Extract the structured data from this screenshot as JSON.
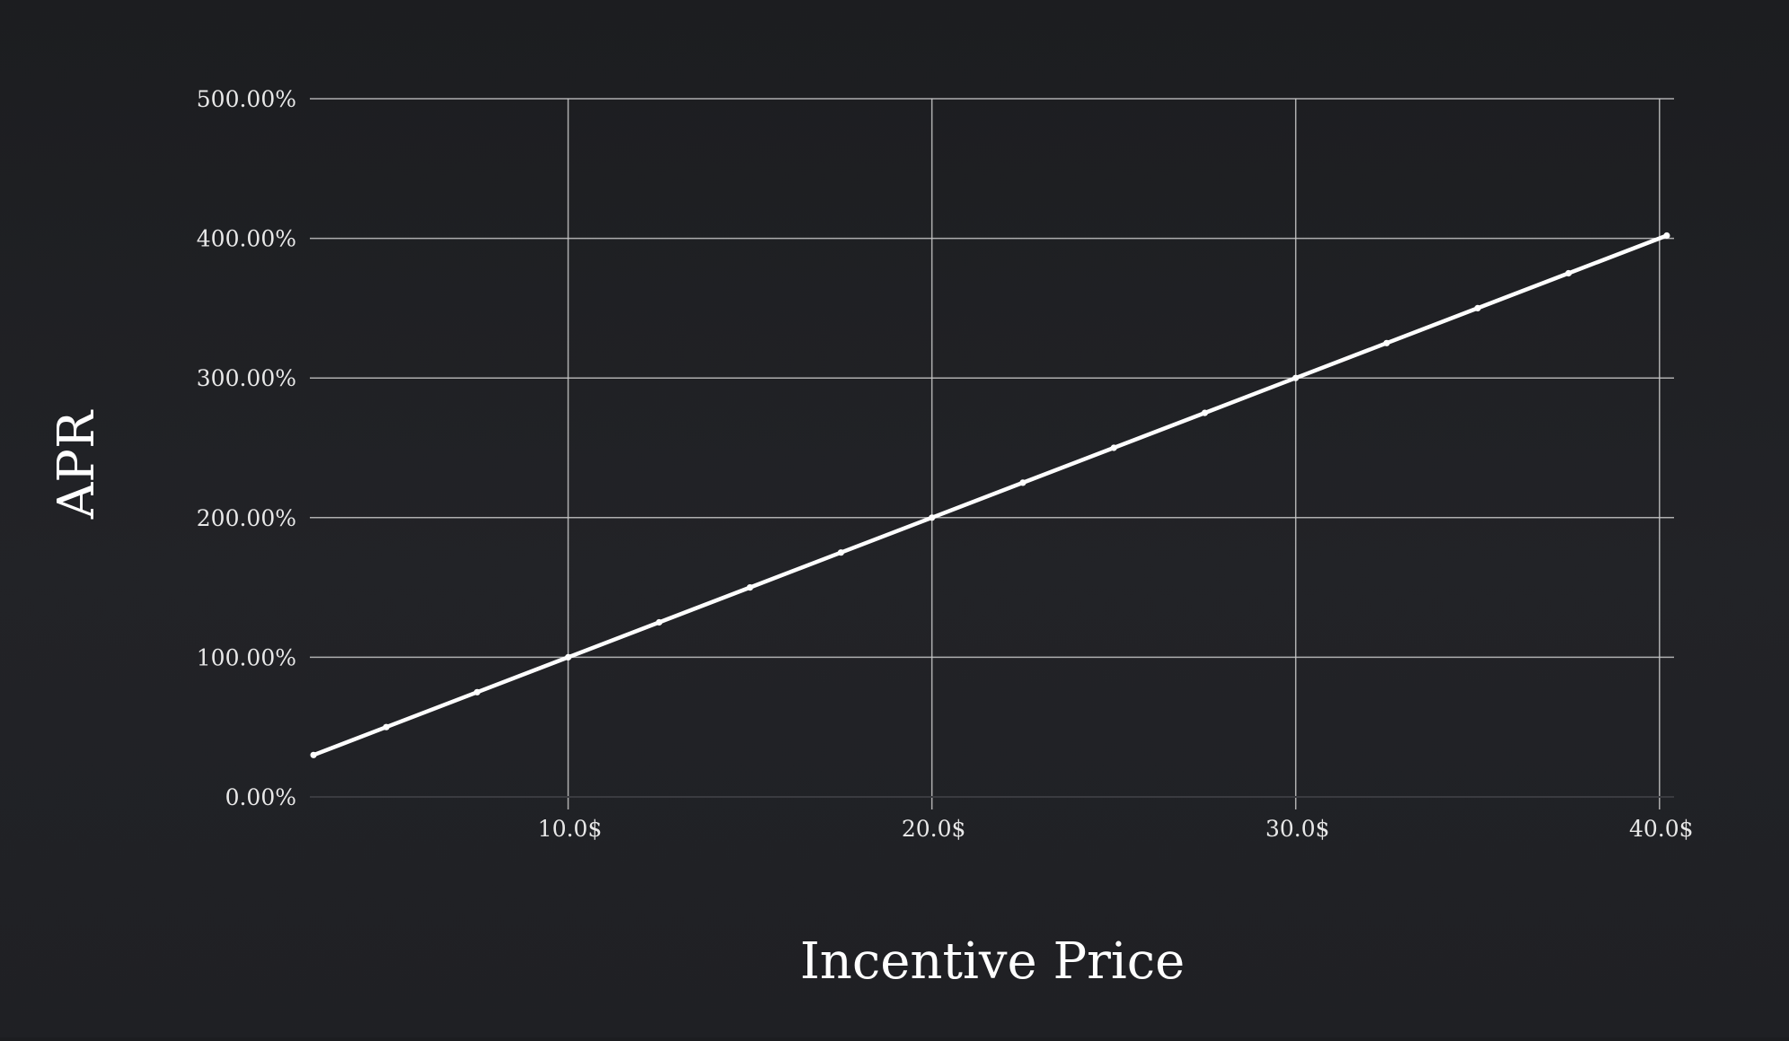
{
  "chart_data": {
    "type": "line",
    "xlabel": "Incentive Price",
    "ylabel": "APR",
    "xlim": [
      2.9,
      40.4
    ],
    "ylim": [
      0,
      500
    ],
    "x_ticks": [
      10,
      20,
      30,
      40
    ],
    "x_tick_labels": [
      "10.0$",
      "20.0$",
      "30.0$",
      "40.0$"
    ],
    "y_ticks": [
      0,
      100,
      200,
      300,
      400,
      500
    ],
    "y_tick_labels": [
      "0.00%",
      "100.00%",
      "200.00%",
      "300.00%",
      "400.00%",
      "500.00%"
    ],
    "grid": true,
    "colors": {
      "line": "#ffffff",
      "grid": "#c8c8c8",
      "background": "#202125"
    },
    "series": [
      {
        "x": [
          3.0,
          5.0,
          7.5,
          10.0,
          12.5,
          15.0,
          17.5,
          20.0,
          22.5,
          25.0,
          27.5,
          30.0,
          32.5,
          35.0,
          37.5,
          40.2
        ],
        "y": [
          30,
          50,
          75,
          100,
          125,
          150,
          175,
          200,
          225,
          250,
          275,
          300,
          325,
          350,
          375,
          402
        ]
      }
    ]
  }
}
